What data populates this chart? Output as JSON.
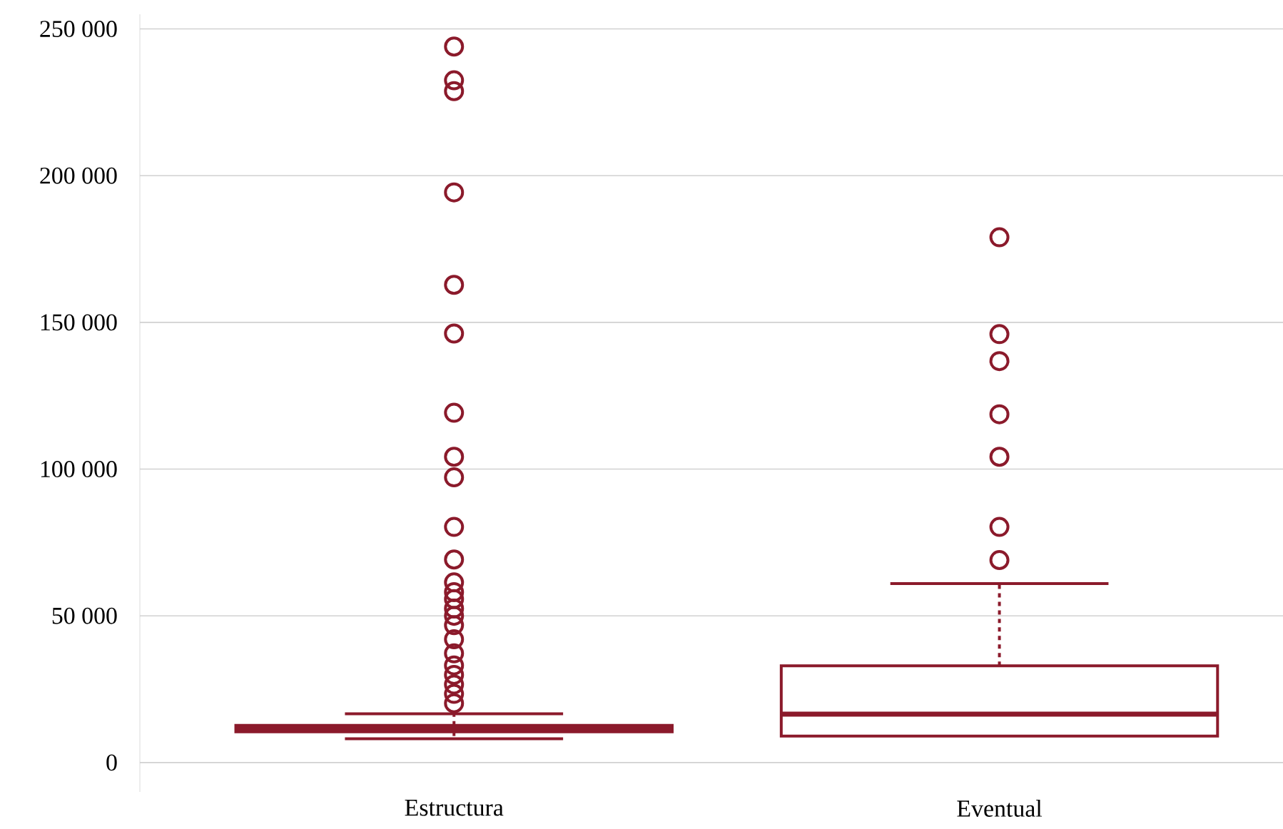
{
  "chart_data": {
    "type": "box",
    "categories": [
      "Estructura",
      "Eventual"
    ],
    "color": "#8b1a2b",
    "marker": "circle",
    "grid": "y",
    "ylim": [
      -10000,
      255000
    ],
    "yticks": [
      {
        "value": 0,
        "label": "0"
      },
      {
        "value": 50000,
        "label": "50 000"
      },
      {
        "value": 100000,
        "label": "100 000"
      },
      {
        "value": 150000,
        "label": "150 000"
      },
      {
        "value": 200000,
        "label": "200 000"
      },
      {
        "value": 250000,
        "label": "250 000"
      }
    ],
    "boxes": [
      {
        "low": 8100,
        "q1": 10500,
        "median": 11500,
        "q3": 12700,
        "high": 16600,
        "outliers": [
          20200,
          23400,
          26600,
          29900,
          33100,
          37200,
          42000,
          46800,
          50000,
          52500,
          55700,
          58100,
          61400,
          69200,
          80300,
          97200,
          104200,
          119200,
          146200,
          162800,
          194300,
          228800,
          232500,
          244000
        ]
      },
      {
        "low": 9000,
        "q1": 9000,
        "median": 16500,
        "q3": 33000,
        "high": 61000,
        "outliers": [
          69000,
          80300,
          104200,
          118700,
          136800,
          146000,
          179000
        ]
      }
    ]
  }
}
